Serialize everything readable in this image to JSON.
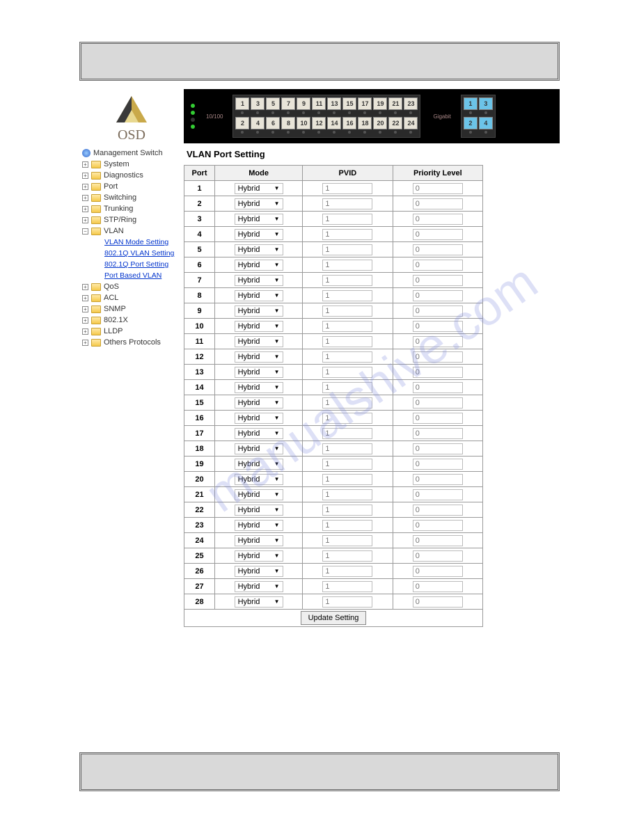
{
  "logo_text": "OSD",
  "port_panel": {
    "label_left": "10/100",
    "label_right": "Gigabit",
    "top_row": [
      "1",
      "3",
      "5",
      "7",
      "9",
      "11",
      "13",
      "15",
      "17",
      "19",
      "21",
      "23"
    ],
    "bot_row": [
      "2",
      "4",
      "6",
      "8",
      "10",
      "12",
      "14",
      "16",
      "18",
      "20",
      "22",
      "24"
    ],
    "gig_top": [
      "1",
      "3"
    ],
    "gig_bot": [
      "2",
      "4"
    ]
  },
  "nav": {
    "root": "Management Switch",
    "items": [
      "System",
      "Diagnostics",
      "Port",
      "Switching",
      "Trunking",
      "STP/Ring"
    ],
    "vlan": "VLAN",
    "vlan_sub": [
      "VLAN Mode Setting",
      "802.1Q VLAN Setting",
      "802.1Q Port Setting",
      "Port Based VLAN"
    ],
    "rest": [
      "QoS",
      "ACL",
      "SNMP",
      "802.1X",
      "LLDP",
      "Others Protocols"
    ]
  },
  "page_title": "VLAN Port Setting",
  "table": {
    "headers": [
      "Port",
      "Mode",
      "PVID",
      "Priority Level"
    ],
    "mode_value": "Hybrid",
    "pvid_value": "1",
    "priority_value": "0",
    "row_count": 28,
    "update_label": "Update Setting"
  },
  "colors": {
    "bar_bg": "#d9d9d9",
    "link": "#0033cc",
    "folder": "#f5c94a"
  }
}
